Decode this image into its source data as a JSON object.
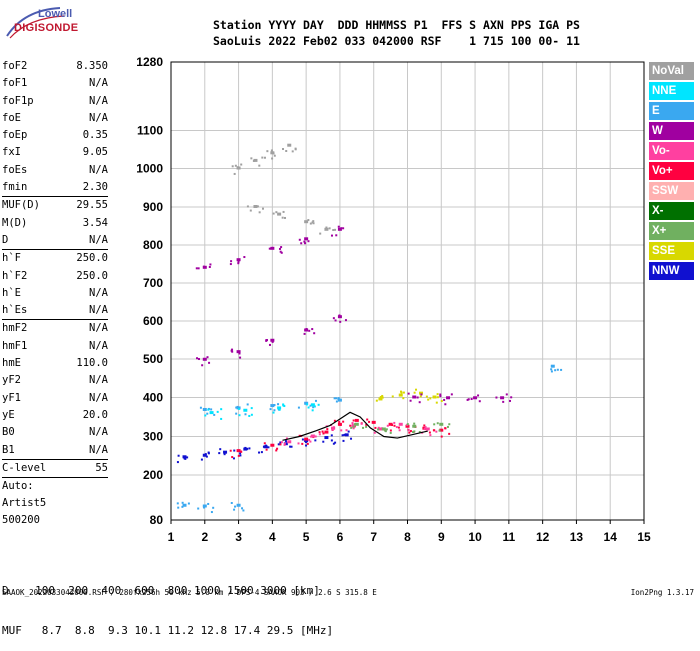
{
  "logo": {
    "line1": "Lowell",
    "line2": "DIGISONDE"
  },
  "header": {
    "line1": "Station YYYY DAY  DDD HHMMSS P1  FFS S AXN PPS IGA PS",
    "line2": "SaoLuis 2022 Feb02 033 042000 RSF    1 715 100 00- 11"
  },
  "params_group1": [
    {
      "label": "foF2",
      "value": "8.350"
    },
    {
      "label": "foF1",
      "value": "N/A"
    },
    {
      "label": "foF1p",
      "value": "N/A"
    },
    {
      "label": "foE",
      "value": "N/A"
    },
    {
      "label": "foEp",
      "value": "0.35"
    },
    {
      "label": "fxI",
      "value": "9.05"
    },
    {
      "label": "foEs",
      "value": "N/A"
    },
    {
      "label": "fmin",
      "value": "2.30"
    }
  ],
  "params_group2": [
    {
      "label": "MUF(D)",
      "value": "29.55"
    },
    {
      "label": "M(D)",
      "value": "3.54"
    },
    {
      "label": "D",
      "value": "N/A"
    }
  ],
  "params_group3": [
    {
      "label": "h`F",
      "value": "250.0"
    },
    {
      "label": "h`F2",
      "value": "250.0"
    },
    {
      "label": "h`E",
      "value": "N/A"
    },
    {
      "label": "h`Es",
      "value": "N/A"
    }
  ],
  "params_group4": [
    {
      "label": "hmF2",
      "value": "N/A"
    },
    {
      "label": "hmF1",
      "value": "N/A"
    },
    {
      "label": "hmE",
      "value": "110.0"
    },
    {
      "label": "yF2",
      "value": "N/A"
    },
    {
      "label": "yF1",
      "value": "N/A"
    },
    {
      "label": "yE",
      "value": "20.0"
    },
    {
      "label": "B0",
      "value": "N/A"
    },
    {
      "label": "B1",
      "value": "N/A"
    }
  ],
  "params_group5": [
    {
      "label": "C-level",
      "value": "55"
    }
  ],
  "auto": {
    "line1": "Auto:",
    "line2": "Artist5",
    "line3": "500200"
  },
  "legend": [
    {
      "label": "NoVal",
      "color": "#a0a0a0"
    },
    {
      "label": "NNE",
      "color": "#00e5ff"
    },
    {
      "label": "E",
      "color": "#3aa8f0"
    },
    {
      "label": "W",
      "color": "#a000a0"
    },
    {
      "label": "Vo-",
      "color": "#ff40a0"
    },
    {
      "label": "Vo+",
      "color": "#ff0040"
    },
    {
      "label": "SSW",
      "color": "#ffb0b0"
    },
    {
      "label": "X-",
      "color": "#007000"
    },
    {
      "label": "X+",
      "color": "#70b060"
    },
    {
      "label": "SSE",
      "color": "#d8d800"
    },
    {
      "label": "NNW",
      "color": "#1010d0"
    }
  ],
  "dmuf": {
    "d_row": "D    100  200  400  600  800 1000 1500 3000 [km]",
    "muf_row": "MUF   8.7  8.8  9.3 10.1 11.2 12.8 17.4 29.5 [MHz]"
  },
  "footer": {
    "left": "SAAOK_2022033042000.RSF / 280fx256h 50 kHz 5.0 km / DPS-4 SAAOK 903 / 2.6 S 315.8 E",
    "right": "Ion2Png 1.3.17"
  },
  "chart_data": {
    "type": "scatter",
    "xlim": [
      1,
      15
    ],
    "ylim": [
      80,
      1280
    ],
    "xticks": [
      1,
      2,
      3,
      4,
      5,
      6,
      7,
      8,
      9,
      10,
      11,
      12,
      13,
      14,
      15
    ],
    "yticks": [
      80,
      200,
      300,
      400,
      500,
      600,
      700,
      800,
      900,
      1000,
      1100,
      1280
    ],
    "ytick_labels": [
      "80",
      "200",
      "300",
      "400",
      "500",
      "600",
      "700",
      "800",
      "900",
      "1000",
      "1100",
      "1280"
    ],
    "grid": true,
    "traces": [
      {
        "name": "NNW",
        "color": "#1010d0",
        "points": [
          [
            1.4,
            246
          ],
          [
            2,
            250
          ],
          [
            2.6,
            258
          ],
          [
            3.2,
            266
          ],
          [
            3.8,
            272
          ],
          [
            4.4,
            280
          ],
          [
            5,
            288
          ],
          [
            5.6,
            296
          ],
          [
            6.2,
            303
          ]
        ]
      },
      {
        "name": "Vo+",
        "color": "#ff0040",
        "points": [
          [
            3,
            262
          ],
          [
            4,
            276
          ],
          [
            5,
            292
          ],
          [
            5.6,
            310
          ],
          [
            6,
            330
          ],
          [
            6.5,
            340
          ],
          [
            7,
            335
          ],
          [
            7.5,
            330
          ],
          [
            8,
            325
          ],
          [
            8.5,
            320
          ],
          [
            9,
            315
          ]
        ]
      },
      {
        "name": "Vo-",
        "color": "#ff40a0",
        "points": [
          [
            4.5,
            285
          ],
          [
            5.2,
            300
          ],
          [
            5.8,
            320
          ],
          [
            6.4,
            325
          ],
          [
            7.2,
            318
          ],
          [
            7.8,
            330
          ],
          [
            8.6,
            318
          ]
        ]
      },
      {
        "name": "X+",
        "color": "#70b060",
        "points": [
          [
            6.5,
            330
          ],
          [
            7.3,
            318
          ],
          [
            8.2,
            325
          ],
          [
            9,
            330
          ]
        ]
      },
      {
        "name": "SSE",
        "color": "#d8d800",
        "points": [
          [
            7.2,
            395
          ],
          [
            7.8,
            405
          ],
          [
            8.4,
            410
          ],
          [
            8.8,
            400
          ]
        ]
      },
      {
        "name": "W",
        "color": "#a000a0",
        "points": [
          [
            2,
            498
          ],
          [
            3,
            518
          ],
          [
            4,
            548
          ],
          [
            5,
            575
          ],
          [
            6,
            610
          ],
          [
            2,
            740
          ],
          [
            3,
            760
          ],
          [
            4,
            790
          ],
          [
            5,
            815
          ],
          [
            6,
            840
          ],
          [
            8.2,
            400
          ],
          [
            9.2,
            398
          ],
          [
            10,
            398
          ],
          [
            10.8,
            398
          ]
        ]
      },
      {
        "name": "E",
        "color": "#3aa8f0",
        "points": [
          [
            2,
            368
          ],
          [
            3,
            372
          ],
          [
            4,
            378
          ],
          [
            5,
            384
          ],
          [
            6,
            392
          ],
          [
            1.4,
            118
          ],
          [
            2,
            116
          ],
          [
            3,
            118
          ],
          [
            12.3,
            480
          ]
        ]
      },
      {
        "name": "NNE",
        "color": "#00e5ff",
        "points": [
          [
            2.2,
            360
          ],
          [
            3.2,
            366
          ],
          [
            4.2,
            372
          ],
          [
            5.2,
            380
          ]
        ]
      },
      {
        "name": "NoVal",
        "color": "#a0a0a0",
        "points": [
          [
            3,
            1000
          ],
          [
            3.5,
            1020
          ],
          [
            4,
            1040
          ],
          [
            4.5,
            1060
          ],
          [
            3.5,
            900
          ],
          [
            4.2,
            880
          ],
          [
            5,
            860
          ],
          [
            5.6,
            840
          ]
        ]
      }
    ],
    "line": {
      "color": "#000000",
      "points": [
        [
          4.3,
          290
        ],
        [
          4.8,
          300
        ],
        [
          5.3,
          315
        ],
        [
          5.7,
          328
        ],
        [
          6,
          345
        ],
        [
          6.3,
          362
        ],
        [
          6.6,
          350
        ],
        [
          6.9,
          322
        ],
        [
          7.3,
          300
        ],
        [
          7.7,
          296
        ],
        [
          8.2,
          306
        ],
        [
          8.6,
          314
        ]
      ]
    }
  }
}
